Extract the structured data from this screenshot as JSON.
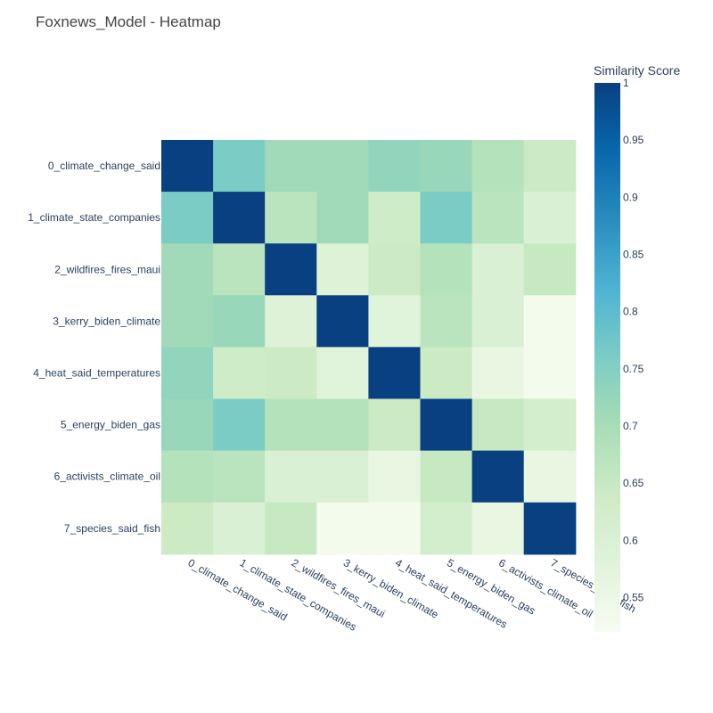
{
  "chart_data": {
    "type": "heatmap",
    "title": "Foxnews_Model - Heatmap",
    "categories": [
      "0_climate_change_said",
      "1_climate_state_companies",
      "2_wildfires_fires_maui",
      "3_kerry_biden_climate",
      "4_heat_said_temperatures",
      "5_energy_biden_gas",
      "6_activists_climate_oil",
      "7_species_said_fish"
    ],
    "values": [
      [
        1.0,
        0.76,
        0.71,
        0.71,
        0.73,
        0.72,
        0.68,
        0.64
      ],
      [
        0.76,
        1.0,
        0.67,
        0.71,
        0.63,
        0.76,
        0.67,
        0.6
      ],
      [
        0.71,
        0.67,
        1.0,
        0.59,
        0.64,
        0.68,
        0.6,
        0.65
      ],
      [
        0.71,
        0.72,
        0.59,
        1.0,
        0.58,
        0.67,
        0.6,
        0.53
      ],
      [
        0.73,
        0.63,
        0.64,
        0.58,
        1.0,
        0.64,
        0.56,
        0.53
      ],
      [
        0.72,
        0.76,
        0.68,
        0.68,
        0.64,
        1.0,
        0.65,
        0.62
      ],
      [
        0.68,
        0.67,
        0.6,
        0.6,
        0.56,
        0.65,
        1.0,
        0.56
      ],
      [
        0.64,
        0.6,
        0.65,
        0.53,
        0.53,
        0.62,
        0.56,
        1.0
      ]
    ],
    "colorbar": {
      "title": "Similarity Score",
      "zmin": 0.52,
      "zmax": 1.0,
      "ticks": [
        1,
        0.95,
        0.9,
        0.85,
        0.8,
        0.75,
        0.7,
        0.65,
        0.6,
        0.55
      ],
      "tick_labels": [
        "1",
        "0.95",
        "0.9",
        "0.85",
        "0.8",
        "0.75",
        "0.7",
        "0.65",
        "0.6",
        "0.55"
      ]
    },
    "colorscale": [
      [
        0.0,
        "#f7fcf0"
      ],
      [
        0.125,
        "#e0f3db"
      ],
      [
        0.25,
        "#ccebc5"
      ],
      [
        0.375,
        "#a8ddb5"
      ],
      [
        0.5,
        "#7bccc4"
      ],
      [
        0.625,
        "#4eb3d3"
      ],
      [
        0.75,
        "#2b8cbe"
      ],
      [
        0.875,
        "#0868ac"
      ],
      [
        1.0,
        "#084081"
      ]
    ]
  }
}
